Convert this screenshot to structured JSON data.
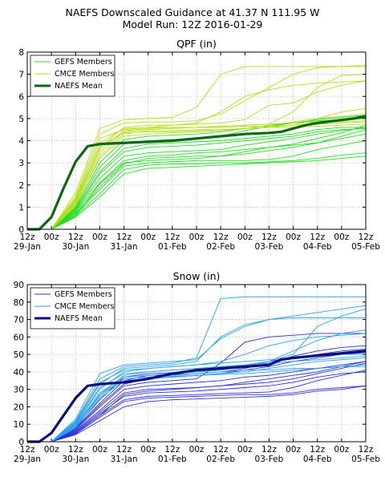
{
  "title": {
    "line1": "NAEFS Downscaled Guidance at 41.37 N 111.95 W",
    "line2": "Model Run: 12Z 2016-01-29"
  },
  "chart_data": [
    {
      "type": "line",
      "title": "QPF (in)",
      "x_ticks": [
        "12z",
        "00z",
        "12z",
        "00z",
        "12z",
        "00z",
        "12z",
        "00z",
        "12z",
        "00z",
        "12z",
        "00z",
        "12z",
        "00z",
        "12z"
      ],
      "x_day_labels": [
        {
          "label": "29-Jan",
          "tick": 0
        },
        {
          "label": "30-Jan",
          "tick": 2
        },
        {
          "label": "31-Jan",
          "tick": 4
        },
        {
          "label": "01-Feb",
          "tick": 6
        },
        {
          "label": "02-Feb",
          "tick": 8
        },
        {
          "label": "03-Feb",
          "tick": 10
        },
        {
          "label": "04-Feb",
          "tick": 12
        },
        {
          "label": "05-Feb",
          "tick": 14
        }
      ],
      "ylim": [
        0,
        8
      ],
      "yticks": [
        0,
        1,
        2,
        3,
        4,
        5,
        6,
        7,
        8
      ],
      "grid": true,
      "legend_position": "top-left",
      "colors": {
        "gefs": "#22dd22",
        "cmce": "#b5dd1a",
        "mean": "#0c6612"
      },
      "series": [
        {
          "name": "GEFS Members",
          "group": "gefs",
          "legend": true,
          "values": [
            0,
            0,
            0.55,
            1.45,
            2.5,
            2.75,
            2.8,
            2.85,
            2.9,
            2.95,
            3.0,
            3.05,
            3.1,
            3.2,
            3.3
          ]
        },
        {
          "group": "gefs",
          "values": [
            0,
            0,
            0.6,
            1.6,
            2.7,
            2.9,
            2.95,
            2.95,
            3.0,
            3.0,
            3.05,
            3.1,
            3.2,
            3.35,
            3.45
          ]
        },
        {
          "group": "gefs",
          "values": [
            0,
            0,
            0.65,
            1.8,
            2.85,
            3.0,
            3.05,
            3.1,
            3.1,
            3.1,
            3.15,
            3.3,
            3.6,
            3.8,
            4.0
          ]
        },
        {
          "group": "gefs",
          "values": [
            0,
            0,
            0.7,
            1.9,
            2.95,
            3.2,
            3.25,
            3.3,
            3.3,
            3.4,
            3.55,
            3.7,
            3.9,
            4.2,
            4.5
          ]
        },
        {
          "group": "gefs",
          "values": [
            0,
            0,
            0.75,
            2.1,
            3.1,
            3.3,
            3.35,
            3.45,
            3.5,
            3.6,
            3.7,
            3.8,
            3.9,
            4.1,
            4.3
          ]
        },
        {
          "group": "gefs",
          "values": [
            0,
            0,
            0.8,
            2.3,
            3.3,
            3.45,
            3.5,
            3.55,
            3.6,
            3.8,
            3.95,
            4.1,
            4.3,
            4.45,
            4.6
          ]
        },
        {
          "group": "gefs",
          "values": [
            0,
            0,
            0.85,
            2.5,
            3.5,
            3.7,
            3.75,
            3.8,
            3.9,
            4.0,
            4.1,
            4.2,
            4.4,
            4.5,
            4.55
          ]
        },
        {
          "group": "gefs",
          "values": [
            0,
            0,
            0.9,
            2.6,
            3.65,
            3.85,
            3.9,
            3.95,
            4.0,
            4.1,
            4.2,
            4.3,
            4.5,
            4.6,
            4.6
          ]
        },
        {
          "group": "gefs",
          "values": [
            0,
            0,
            0.95,
            2.8,
            3.85,
            4.0,
            4.05,
            4.1,
            4.2,
            4.45,
            4.65,
            4.8,
            4.95,
            5.05,
            5.15
          ]
        },
        {
          "group": "gefs",
          "values": [
            0,
            0,
            1.0,
            3.0,
            4.05,
            4.2,
            4.25,
            4.3,
            4.4,
            4.55,
            4.7,
            4.8,
            4.9,
            4.95,
            5.0
          ]
        },
        {
          "group": "gefs",
          "values": [
            0,
            0,
            0.6,
            2.05,
            3.0,
            3.1,
            3.15,
            3.2,
            3.3,
            3.5,
            3.7,
            3.85,
            4.1,
            4.35,
            4.7
          ]
        },
        {
          "name": "CMCE Members",
          "group": "cmce",
          "legend": true,
          "values": [
            0,
            0,
            1.05,
            3.3,
            4.3,
            4.45,
            4.45,
            4.5,
            4.5,
            4.55,
            4.6,
            4.6,
            4.65,
            4.7,
            4.75
          ]
        },
        {
          "group": "cmce",
          "values": [
            0,
            0,
            1.2,
            3.6,
            4.45,
            4.55,
            4.6,
            4.6,
            4.65,
            4.7,
            4.75,
            4.8,
            4.85,
            4.85,
            4.9
          ]
        },
        {
          "group": "cmce",
          "values": [
            0,
            0,
            1.35,
            3.9,
            4.55,
            4.6,
            4.7,
            4.8,
            5.3,
            6.0,
            6.3,
            6.5,
            6.6,
            6.65,
            6.7
          ]
        },
        {
          "group": "cmce",
          "values": [
            0,
            0,
            1.5,
            4.3,
            4.8,
            4.85,
            4.85,
            4.9,
            5.2,
            5.8,
            6.4,
            7.0,
            7.3,
            7.35,
            7.4
          ]
        },
        {
          "group": "cmce",
          "values": [
            0,
            0,
            1.65,
            4.55,
            4.95,
            5.0,
            5.05,
            5.5,
            7.0,
            7.35,
            7.35,
            7.35,
            7.35,
            7.35,
            7.35
          ]
        },
        {
          "group": "cmce",
          "values": [
            0,
            0,
            1.25,
            3.75,
            4.35,
            4.4,
            4.4,
            4.45,
            4.5,
            4.55,
            4.6,
            4.7,
            5.0,
            5.3,
            5.45
          ]
        },
        {
          "group": "cmce",
          "values": [
            0,
            0,
            1.4,
            4.1,
            4.5,
            4.6,
            4.6,
            4.6,
            4.65,
            4.7,
            4.75,
            5.3,
            6.4,
            6.95,
            7.0
          ]
        },
        {
          "group": "cmce",
          "values": [
            0,
            0,
            1.1,
            3.2,
            4.2,
            4.3,
            4.35,
            4.4,
            4.45,
            4.55,
            4.7,
            4.85,
            5.0,
            5.1,
            5.2
          ]
        },
        {
          "group": "cmce",
          "values": [
            0,
            0,
            1.15,
            3.45,
            4.4,
            4.5,
            4.55,
            4.6,
            4.6,
            4.65,
            4.65,
            4.7,
            4.75,
            4.8,
            4.85
          ]
        },
        {
          "group": "cmce",
          "values": [
            0,
            0,
            1.3,
            3.7,
            4.6,
            4.7,
            4.7,
            4.75,
            4.8,
            4.95,
            5.6,
            5.7,
            6.2,
            6.5,
            6.7
          ]
        },
        {
          "name": "NAEFS Mean",
          "group": "mean",
          "legend": true,
          "values": [
            0,
            0,
            0.55,
            1.85,
            3.05,
            3.75,
            3.85,
            3.9,
            3.95,
            4.0,
            4.1,
            4.2,
            4.3,
            4.35,
            4.4,
            4.55,
            4.7,
            4.8,
            4.9,
            5.0,
            5.1
          ]
        }
      ],
      "mean_x": [
        0,
        0.5,
        1,
        1.5,
        2,
        2.5,
        3,
        4,
        5,
        6,
        7,
        8,
        9,
        10,
        10.5,
        11,
        11.5,
        12,
        12.75,
        13.5,
        14
      ]
    },
    {
      "type": "line",
      "title": "Snow (in)",
      "x_ticks": [
        "12z",
        "00z",
        "12z",
        "00z",
        "12z",
        "00z",
        "12z",
        "00z",
        "12z",
        "00z",
        "12z",
        "00z",
        "12z",
        "00z",
        "12z"
      ],
      "x_day_labels": [
        {
          "label": "29-Jan",
          "tick": 0
        },
        {
          "label": "30-Jan",
          "tick": 2
        },
        {
          "label": "31-Jan",
          "tick": 4
        },
        {
          "label": "01-Feb",
          "tick": 6
        },
        {
          "label": "02-Feb",
          "tick": 8
        },
        {
          "label": "03-Feb",
          "tick": 10
        },
        {
          "label": "04-Feb",
          "tick": 12
        },
        {
          "label": "05-Feb",
          "tick": 14
        }
      ],
      "ylim": [
        0,
        90
      ],
      "yticks": [
        0,
        10,
        20,
        30,
        40,
        50,
        60,
        70,
        80,
        90
      ],
      "grid": true,
      "legend_position": "top-left",
      "colors": {
        "gefs": "#2b2fd6",
        "cmce": "#2aa2e8",
        "mean": "#0b0b80"
      },
      "series": [
        {
          "name": "GEFS Members",
          "group": "gefs",
          "legend": true,
          "values": [
            0,
            0,
            4,
            12,
            20,
            23,
            24,
            24.5,
            25,
            25.5,
            26,
            27,
            29,
            30,
            32
          ]
        },
        {
          "group": "gefs",
          "values": [
            0,
            0,
            4.5,
            14,
            23,
            25,
            25.5,
            26,
            26.5,
            27,
            27,
            28,
            30,
            31,
            32
          ]
        },
        {
          "group": "gefs",
          "values": [
            0,
            0,
            5,
            15,
            24,
            26,
            26.5,
            27,
            27.5,
            28,
            28.5,
            31,
            35,
            38,
            41
          ]
        },
        {
          "group": "gefs",
          "values": [
            0,
            0,
            5.5,
            16,
            26,
            28,
            28.5,
            29,
            30,
            31,
            32,
            34,
            37,
            39,
            40
          ]
        },
        {
          "group": "gefs",
          "values": [
            0,
            0,
            6,
            17,
            28,
            30,
            30.5,
            31,
            32,
            33,
            34,
            36,
            39,
            42,
            45
          ]
        },
        {
          "group": "gefs",
          "values": [
            0,
            0,
            6.5,
            18,
            30,
            32,
            33,
            34,
            35,
            37,
            38,
            40,
            42,
            44,
            46
          ]
        },
        {
          "group": "gefs",
          "values": [
            0,
            0,
            7,
            20,
            32,
            34,
            35,
            36,
            45,
            57,
            60,
            61,
            62,
            62,
            62
          ]
        },
        {
          "group": "gefs",
          "values": [
            0,
            0,
            7.5,
            21,
            33,
            36,
            37,
            38,
            39,
            41,
            43,
            46,
            48,
            50,
            51
          ]
        },
        {
          "group": "gefs",
          "values": [
            0,
            0,
            8,
            22,
            35,
            38,
            38.5,
            39,
            40,
            42,
            45,
            49,
            52,
            54,
            55
          ]
        },
        {
          "group": "gefs",
          "values": [
            0,
            0,
            8.5,
            24,
            37,
            39,
            39.5,
            40,
            41,
            43,
            46,
            48,
            50,
            52,
            53
          ]
        },
        {
          "group": "gefs",
          "values": [
            0,
            0,
            5,
            15,
            27,
            29,
            30,
            31,
            32,
            34,
            36,
            38,
            40,
            43,
            46
          ]
        },
        {
          "name": "CMCE Members",
          "group": "cmce",
          "legend": true,
          "values": [
            0,
            0,
            9,
            27,
            38,
            40,
            41,
            42,
            43,
            44,
            45,
            46,
            47,
            48,
            49
          ]
        },
        {
          "group": "cmce",
          "values": [
            0,
            0,
            10,
            30,
            40,
            42,
            43,
            44,
            45,
            46,
            47,
            48,
            49,
            50,
            50
          ]
        },
        {
          "group": "cmce",
          "values": [
            0,
            0,
            11,
            33,
            42,
            43,
            44,
            46,
            60,
            67,
            70,
            71,
            71,
            71,
            71
          ]
        },
        {
          "group": "cmce",
          "values": [
            0,
            0,
            12,
            36,
            43,
            44,
            45,
            48,
            82,
            83,
            83,
            83,
            83,
            83,
            83
          ]
        },
        {
          "group": "cmce",
          "values": [
            0,
            0,
            13,
            39,
            44,
            45,
            46,
            47,
            59,
            66,
            70,
            72,
            74,
            76,
            78
          ]
        },
        {
          "group": "cmce",
          "values": [
            0,
            0,
            9.5,
            28,
            37,
            38,
            39,
            40,
            41,
            43,
            46,
            52,
            58,
            62,
            64
          ]
        },
        {
          "group": "cmce",
          "values": [
            0,
            0,
            10.5,
            31,
            39,
            40,
            41,
            42,
            43,
            44,
            46,
            50,
            66,
            72,
            76
          ]
        },
        {
          "group": "cmce",
          "values": [
            0,
            0,
            8,
            25,
            35,
            36,
            37,
            38,
            39,
            40,
            42,
            44,
            46,
            47,
            48
          ]
        },
        {
          "group": "cmce",
          "values": [
            0,
            0,
            9,
            26,
            36,
            37,
            38,
            39,
            40,
            41,
            41,
            42,
            42,
            43,
            43
          ]
        },
        {
          "group": "cmce",
          "values": [
            0,
            0,
            11.5,
            34,
            41,
            42,
            43,
            44,
            46,
            50,
            55,
            58,
            60,
            61,
            62
          ]
        },
        {
          "name": "NAEFS Mean",
          "group": "mean",
          "legend": true,
          "values": [
            0,
            0,
            5,
            15,
            25,
            32,
            33,
            34,
            36,
            39,
            41,
            42,
            43,
            44,
            47,
            48,
            49,
            50,
            51,
            52
          ]
        },
        {
          "group": "cmce",
          "values": [
            0,
            0,
            8.5,
            27,
            36,
            37,
            37.5,
            38,
            38.5,
            39,
            40,
            41,
            42,
            43,
            44
          ]
        }
      ],
      "mean_x": [
        0,
        0.5,
        1,
        1.5,
        2,
        2.5,
        3,
        4,
        5,
        6,
        7,
        8,
        9,
        10,
        10.5,
        11,
        11.75,
        12.5,
        13.25,
        14
      ]
    }
  ]
}
